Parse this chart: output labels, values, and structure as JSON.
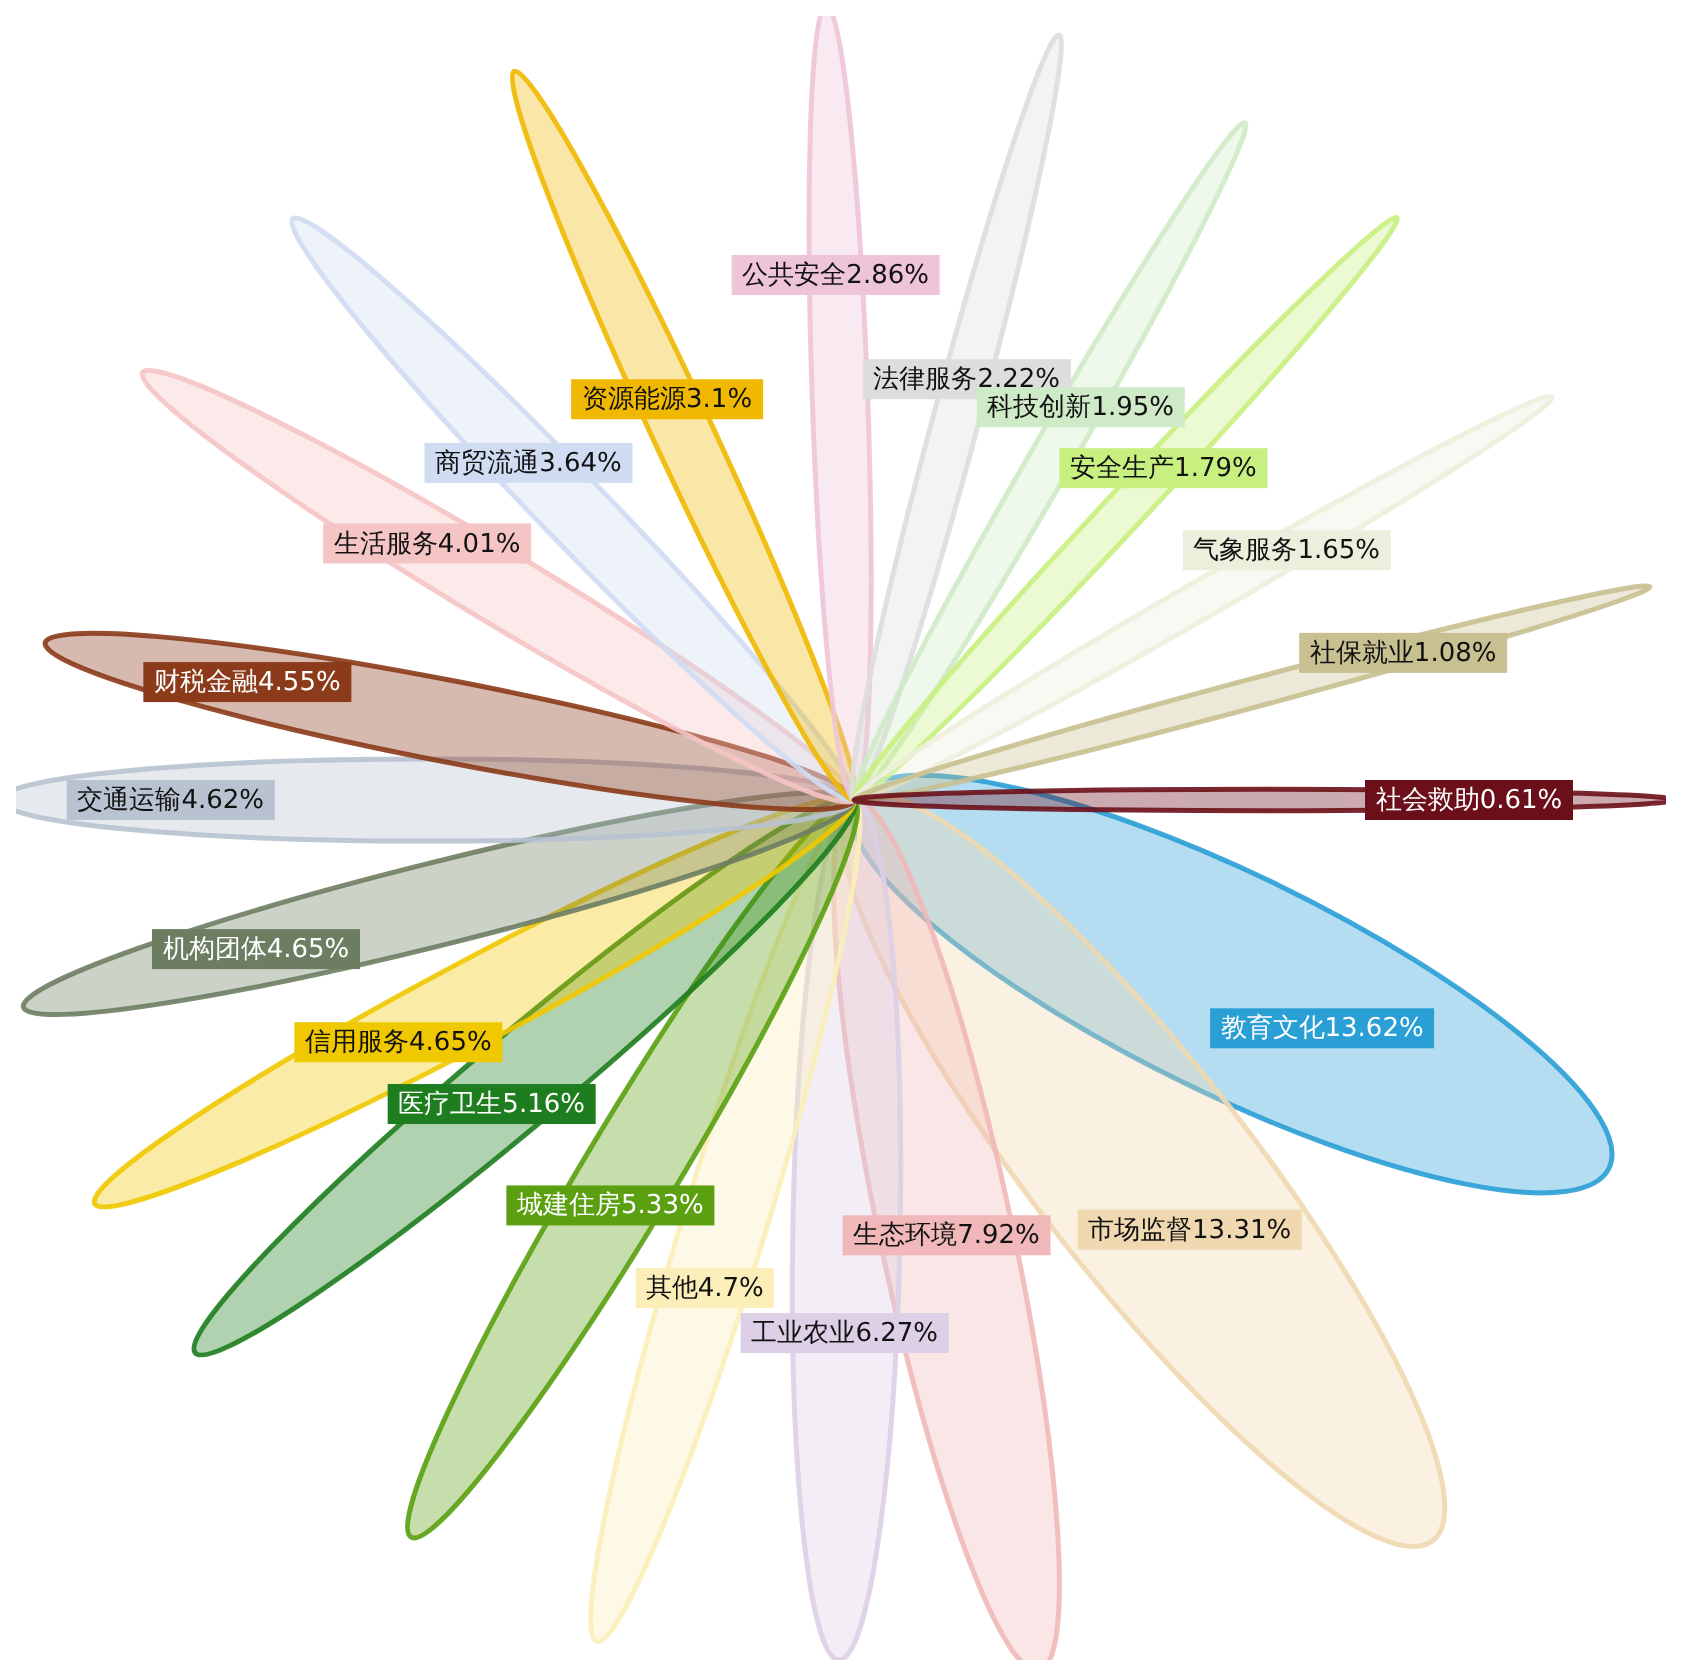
{
  "chart_data": {
    "type": "other",
    "categories": [
      "教育文化",
      "市场监督",
      "生态环境",
      "工业农业",
      "其他",
      "城建住房",
      "医疗卫生",
      "信用服务",
      "机构团体",
      "交通运输",
      "财税金融",
      "生活服务",
      "商贸流通",
      "资源能源",
      "公共安全",
      "法律服务",
      "科技创新",
      "安全生产",
      "气象服务",
      "社保就业",
      "社会救助"
    ],
    "values": [
      13.62,
      13.31,
      7.92,
      6.27,
      4.7,
      5.33,
      5.16,
      4.65,
      4.65,
      4.62,
      4.55,
      4.01,
      3.64,
      3.1,
      2.86,
      2.22,
      1.95,
      1.79,
      1.65,
      1.08,
      0.61
    ],
    "value_labels": [
      "13.62%",
      "13.31%",
      "7.92%",
      "6.27%",
      "4.7%",
      "5.33%",
      "5.16%",
      "4.65%",
      "4.65%",
      "4.62%",
      "4.55%",
      "4.01%",
      "3.64%",
      "3.1%",
      "2.86%",
      "2.22%",
      "1.95%",
      "1.79%",
      "1.65%",
      "1.08%",
      "0.61%"
    ],
    "colors": [
      "#2a9fd6",
      "#f0d8b0",
      "#f0b8b8",
      "#dccfe6",
      "#fbeeb8",
      "#5aa010",
      "#1e7d1e",
      "#f0c800",
      "#6d7d62",
      "#b8c2d0",
      "#8b3a1a",
      "#f5c4c4",
      "#cfdcf2",
      "#f0b800",
      "#eec4d8",
      "#dddddd",
      "#cfeac6",
      "#c8f080",
      "#eeeedc",
      "#c8c090",
      "#6b0f1a"
    ]
  }
}
